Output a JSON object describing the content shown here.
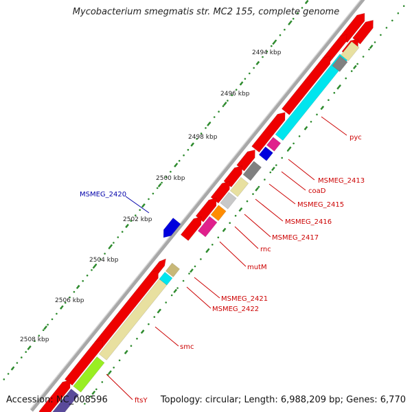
{
  "title": "Mycobacterium smegmatis str. MC2 155, complete genome",
  "footer": {
    "accession": "Accession: NC_008596",
    "topology": "Topology: circular; Length: 6,988,209 bp; Genes: 6,770"
  },
  "scale": {
    "tick_labels": [
      "2494 kbp",
      "2496 kbp",
      "2498 kbp",
      "2500 kbp",
      "2502 kbp",
      "2504 kbp",
      "2506 kbp",
      "2508 kbp"
    ]
  },
  "gene_labels": [
    {
      "name": "pyc",
      "color": "#cc0000"
    },
    {
      "name": "MSMEG_2413",
      "color": "#cc0000"
    },
    {
      "name": "coaD",
      "color": "#cc0000"
    },
    {
      "name": "MSMEG_2415",
      "color": "#cc0000"
    },
    {
      "name": "MSMEG_2416",
      "color": "#cc0000"
    },
    {
      "name": "MSMEG_2417",
      "color": "#cc0000"
    },
    {
      "name": "rnc",
      "color": "#cc0000"
    },
    {
      "name": "mutM",
      "color": "#cc0000"
    },
    {
      "name": "MSMEG_2421",
      "color": "#cc0000"
    },
    {
      "name": "MSMEG_2422",
      "color": "#cc0000"
    },
    {
      "name": "smc",
      "color": "#cc0000"
    },
    {
      "name": "ftsY",
      "color": "#cc0000"
    },
    {
      "name": "MSMEG_2420",
      "color": "#0000aa"
    }
  ],
  "colors": {
    "cds": "#ee0000",
    "backbone": "#9a9a9a",
    "tick": "#2e8b2e",
    "cyan": "#00e5ee",
    "khaki": "#e8e0a0",
    "magenta": "#e0208c",
    "blue": "#0000dd",
    "gray": "#808080",
    "lightgray": "#c8c8c8",
    "orange": "#ff8c00",
    "lime": "#99ee22",
    "purple": "#5a4a9a",
    "olive": "#c8b878"
  }
}
